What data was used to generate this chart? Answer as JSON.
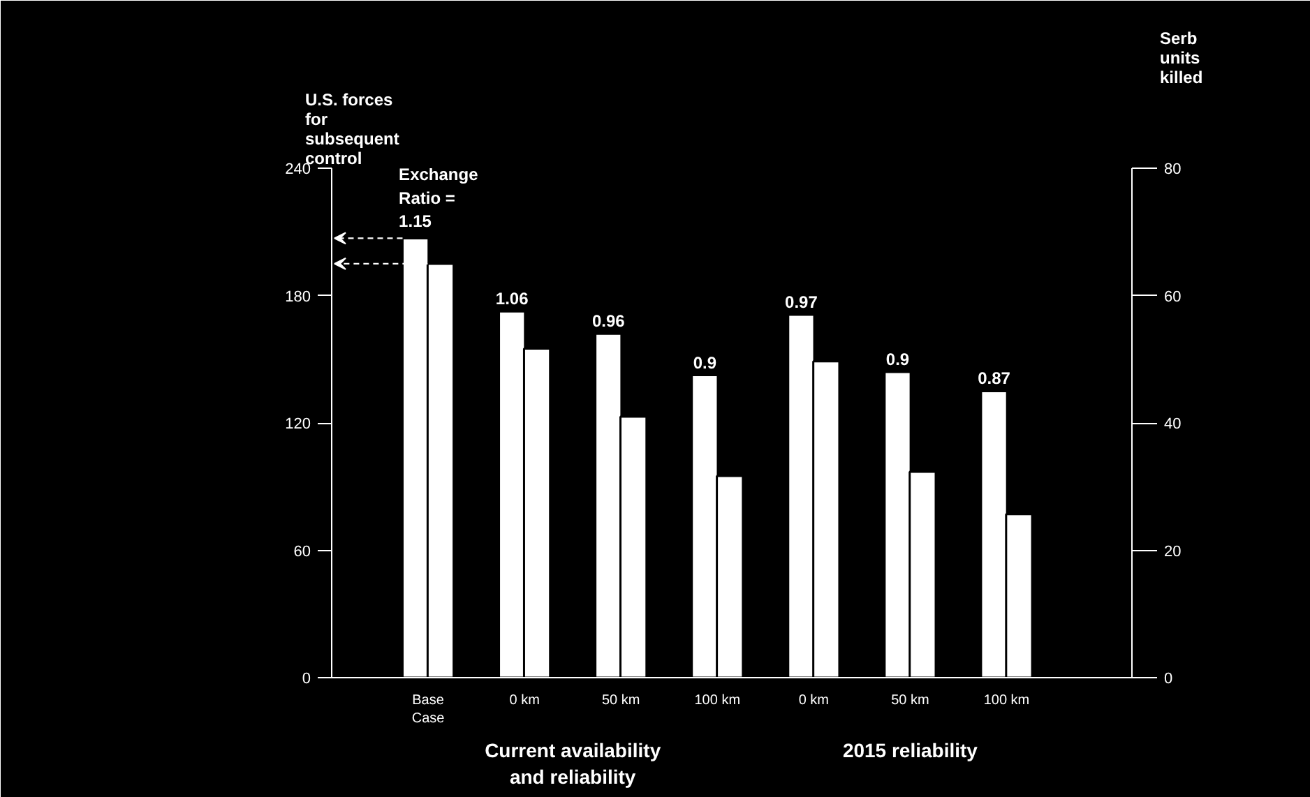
{
  "chart_data": {
    "type": "bar",
    "ylabel": "U.S. forces\nfor\nsubsequent\ncontrol",
    "y2label": "Serb\nunits\nkilled",
    "categories": [
      "Base\nCase",
      "0 km",
      "50 km",
      "100 km",
      "0 km",
      "50 km",
      "100 km"
    ],
    "series": [
      {
        "color": "#ffffff",
        "axis": "y2",
        "values": [
          69,
          57.5,
          54,
          47.5,
          57,
          48,
          45
        ]
      },
      {
        "color": "#ffffff",
        "values": [
          195,
          155,
          123,
          95,
          149,
          97,
          77
        ]
      }
    ],
    "ylim": [
      0,
      240
    ],
    "yticks": [
      0,
      60,
      120,
      180,
      240
    ],
    "y2lim": [
      0,
      80
    ],
    "y2ticks": [
      0,
      20,
      40,
      60,
      80
    ],
    "annotations": [
      "Exchange\nRatio =\n1.15",
      "1.06",
      "0.96",
      "0.9",
      "0.97",
      "0.9",
      "0.87",
      "Current availability\nand reliability",
      "2015 reliability"
    ],
    "grid": false
  }
}
